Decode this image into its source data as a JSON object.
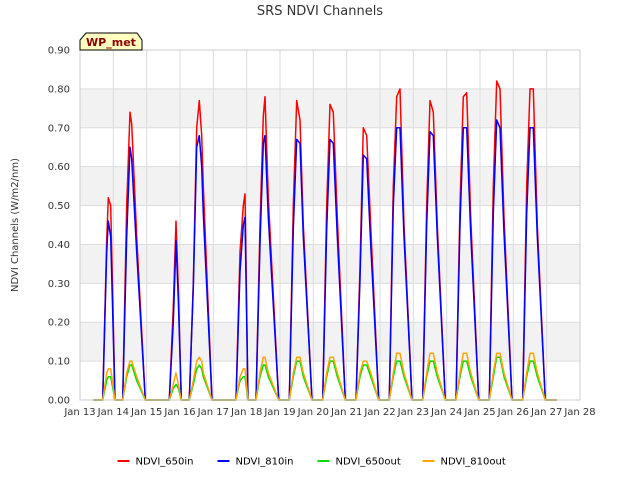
{
  "chart_data": {
    "type": "line",
    "title": "SRS NDVI Channels",
    "badge": "WP_met",
    "xlabel": "",
    "ylabel": "NDVI Channels (W/m2/nm)",
    "x_domain": [
      13,
      28
    ],
    "x_ticks": [
      13,
      14,
      15,
      16,
      17,
      18,
      19,
      20,
      21,
      22,
      23,
      24,
      25,
      26,
      27,
      28
    ],
    "x_tick_labels": [
      "Jan 13",
      "Jan 14",
      "Jan 15",
      "Jan 16",
      "Jan 17",
      "Jan 18",
      "Jan 19",
      "Jan 20",
      "Jan 21",
      "Jan 22",
      "Jan 23",
      "Jan 24",
      "Jan 25",
      "Jan 26",
      "Jan 27",
      "Jan 28"
    ],
    "ylim": [
      0,
      0.9
    ],
    "y_ticks": [
      0,
      0.1,
      0.2,
      0.3,
      0.4,
      0.5,
      0.6,
      0.7,
      0.8,
      0.9
    ],
    "y_tick_labels": [
      "0.00",
      "0.10",
      "0.20",
      "0.30",
      "0.40",
      "0.50",
      "0.60",
      "0.70",
      "0.80",
      "0.90"
    ],
    "grid": true,
    "alternating_bands": true,
    "legend_position": "bottom",
    "series": [
      {
        "name": "NDVI_650in",
        "color": "#ff0000",
        "x": [
          13.4,
          13.68,
          13.8,
          13.85,
          13.92,
          14.05,
          14.28,
          14.4,
          14.5,
          14.55,
          14.7,
          14.96,
          15.4,
          15.68,
          15.8,
          15.88,
          15.95,
          16.04,
          16.28,
          16.4,
          16.5,
          16.58,
          16.65,
          16.7,
          16.96,
          17.4,
          17.68,
          17.8,
          17.9,
          17.95,
          18.04,
          18.28,
          18.4,
          18.5,
          18.55,
          18.65,
          18.96,
          19.28,
          19.4,
          19.5,
          19.6,
          19.7,
          19.96,
          20.28,
          20.4,
          20.5,
          20.6,
          20.72,
          20.96,
          21.28,
          21.4,
          21.5,
          21.6,
          21.72,
          21.96,
          22.28,
          22.4,
          22.5,
          22.6,
          22.72,
          22.96,
          23.28,
          23.4,
          23.5,
          23.6,
          23.72,
          23.96,
          24.28,
          24.4,
          24.5,
          24.6,
          24.72,
          24.96,
          25.28,
          25.4,
          25.5,
          25.6,
          25.72,
          25.96,
          26.28,
          26.4,
          26.5,
          26.6,
          26.72,
          26.96,
          27.3
        ],
        "y": [
          0.0,
          0.0,
          0.41,
          0.52,
          0.5,
          0.0,
          0.0,
          0.5,
          0.74,
          0.71,
          0.42,
          0.0,
          0.0,
          0.0,
          0.24,
          0.46,
          0.29,
          0.0,
          0.0,
          0.3,
          0.7,
          0.77,
          0.68,
          0.55,
          0.0,
          0.0,
          0.0,
          0.38,
          0.5,
          0.53,
          0.0,
          0.0,
          0.45,
          0.73,
          0.78,
          0.52,
          0.0,
          0.0,
          0.5,
          0.77,
          0.72,
          0.45,
          0.0,
          0.0,
          0.5,
          0.76,
          0.74,
          0.47,
          0.0,
          0.0,
          0.34,
          0.7,
          0.68,
          0.45,
          0.0,
          0.0,
          0.55,
          0.78,
          0.8,
          0.45,
          0.0,
          0.0,
          0.5,
          0.77,
          0.74,
          0.45,
          0.0,
          0.0,
          0.5,
          0.78,
          0.79,
          0.47,
          0.0,
          0.0,
          0.55,
          0.82,
          0.8,
          0.47,
          0.0,
          0.0,
          0.55,
          0.8,
          0.8,
          0.45,
          0.0,
          0.0
        ]
      },
      {
        "name": "NDVI_810in",
        "color": "#0000ff",
        "x": [
          13.4,
          13.68,
          13.8,
          13.85,
          13.92,
          14.05,
          14.28,
          14.4,
          14.5,
          14.55,
          14.7,
          14.96,
          15.4,
          15.68,
          15.8,
          15.88,
          15.95,
          16.04,
          16.28,
          16.4,
          16.5,
          16.58,
          16.65,
          16.7,
          16.96,
          17.4,
          17.68,
          17.8,
          17.9,
          17.95,
          18.04,
          18.28,
          18.4,
          18.5,
          18.55,
          18.65,
          18.96,
          19.28,
          19.4,
          19.5,
          19.6,
          19.7,
          19.96,
          20.28,
          20.4,
          20.5,
          20.6,
          20.72,
          20.96,
          21.28,
          21.4,
          21.5,
          21.6,
          21.72,
          21.96,
          22.28,
          22.4,
          22.5,
          22.6,
          22.72,
          22.96,
          23.28,
          23.4,
          23.5,
          23.6,
          23.72,
          23.96,
          24.28,
          24.4,
          24.5,
          24.6,
          24.72,
          24.96,
          25.28,
          25.4,
          25.5,
          25.6,
          25.72,
          25.96,
          26.28,
          26.4,
          26.5,
          26.6,
          26.72,
          26.96,
          27.3
        ],
        "y": [
          0.0,
          0.0,
          0.38,
          0.46,
          0.42,
          0.0,
          0.0,
          0.42,
          0.65,
          0.62,
          0.38,
          0.0,
          0.0,
          0.0,
          0.2,
          0.41,
          0.26,
          0.0,
          0.0,
          0.29,
          0.65,
          0.68,
          0.6,
          0.48,
          0.0,
          0.0,
          0.0,
          0.33,
          0.45,
          0.47,
          0.0,
          0.0,
          0.4,
          0.66,
          0.68,
          0.47,
          0.0,
          0.0,
          0.44,
          0.67,
          0.66,
          0.42,
          0.0,
          0.0,
          0.44,
          0.67,
          0.66,
          0.42,
          0.0,
          0.0,
          0.31,
          0.63,
          0.62,
          0.4,
          0.0,
          0.0,
          0.5,
          0.7,
          0.7,
          0.42,
          0.0,
          0.0,
          0.45,
          0.69,
          0.68,
          0.42,
          0.0,
          0.0,
          0.45,
          0.7,
          0.7,
          0.43,
          0.0,
          0.0,
          0.48,
          0.72,
          0.7,
          0.43,
          0.0,
          0.0,
          0.48,
          0.7,
          0.7,
          0.42,
          0.0,
          0.0
        ]
      },
      {
        "name": "NDVI_650out",
        "color": "#00dd00",
        "x": [
          13.4,
          13.68,
          13.8,
          13.85,
          13.92,
          14.05,
          14.28,
          14.4,
          14.5,
          14.55,
          14.7,
          14.96,
          15.4,
          15.68,
          15.8,
          15.88,
          15.95,
          16.04,
          16.28,
          16.4,
          16.5,
          16.58,
          16.65,
          16.7,
          16.96,
          17.4,
          17.68,
          17.8,
          17.9,
          17.95,
          18.04,
          18.28,
          18.4,
          18.5,
          18.55,
          18.65,
          18.96,
          19.28,
          19.4,
          19.5,
          19.6,
          19.7,
          19.96,
          20.28,
          20.4,
          20.5,
          20.6,
          20.72,
          20.96,
          21.28,
          21.4,
          21.5,
          21.6,
          21.72,
          21.96,
          22.28,
          22.4,
          22.5,
          22.6,
          22.72,
          22.96,
          23.28,
          23.4,
          23.5,
          23.6,
          23.72,
          23.96,
          24.28,
          24.4,
          24.5,
          24.6,
          24.72,
          24.96,
          25.28,
          25.4,
          25.5,
          25.6,
          25.72,
          25.96,
          26.28,
          26.4,
          26.5,
          26.6,
          26.72,
          26.96,
          27.3
        ],
        "y": [
          0.0,
          0.0,
          0.05,
          0.06,
          0.06,
          0.0,
          0.0,
          0.06,
          0.09,
          0.09,
          0.05,
          0.0,
          0.0,
          0.0,
          0.03,
          0.04,
          0.03,
          0.0,
          0.0,
          0.04,
          0.08,
          0.09,
          0.08,
          0.06,
          0.0,
          0.0,
          0.0,
          0.05,
          0.06,
          0.06,
          0.0,
          0.0,
          0.06,
          0.09,
          0.09,
          0.06,
          0.0,
          0.0,
          0.06,
          0.1,
          0.1,
          0.06,
          0.0,
          0.0,
          0.06,
          0.1,
          0.1,
          0.06,
          0.0,
          0.0,
          0.06,
          0.09,
          0.09,
          0.06,
          0.0,
          0.0,
          0.06,
          0.1,
          0.1,
          0.06,
          0.0,
          0.0,
          0.06,
          0.1,
          0.1,
          0.06,
          0.0,
          0.0,
          0.06,
          0.1,
          0.1,
          0.06,
          0.0,
          0.0,
          0.06,
          0.11,
          0.11,
          0.06,
          0.0,
          0.0,
          0.06,
          0.1,
          0.1,
          0.06,
          0.0,
          0.0
        ]
      },
      {
        "name": "NDVI_810out",
        "color": "#ffa500",
        "x": [
          13.4,
          13.68,
          13.8,
          13.85,
          13.92,
          14.05,
          14.28,
          14.4,
          14.5,
          14.55,
          14.7,
          14.96,
          15.4,
          15.68,
          15.8,
          15.88,
          15.95,
          16.04,
          16.28,
          16.4,
          16.5,
          16.58,
          16.65,
          16.7,
          16.96,
          17.4,
          17.68,
          17.8,
          17.9,
          17.95,
          18.04,
          18.28,
          18.4,
          18.5,
          18.55,
          18.65,
          18.96,
          19.28,
          19.4,
          19.5,
          19.6,
          19.7,
          19.96,
          20.28,
          20.4,
          20.5,
          20.6,
          20.72,
          20.96,
          21.28,
          21.4,
          21.5,
          21.6,
          21.72,
          21.96,
          22.28,
          22.4,
          22.5,
          22.6,
          22.72,
          22.96,
          23.28,
          23.4,
          23.5,
          23.6,
          23.72,
          23.96,
          24.28,
          24.4,
          24.5,
          24.6,
          24.72,
          24.96,
          25.28,
          25.4,
          25.5,
          25.6,
          25.72,
          25.96,
          26.28,
          26.4,
          26.5,
          26.6,
          26.72,
          26.96,
          27.3
        ],
        "y": [
          0.0,
          0.0,
          0.07,
          0.08,
          0.08,
          0.0,
          0.0,
          0.07,
          0.1,
          0.1,
          0.06,
          0.0,
          0.0,
          0.0,
          0.04,
          0.07,
          0.04,
          0.0,
          0.0,
          0.05,
          0.1,
          0.11,
          0.1,
          0.07,
          0.0,
          0.0,
          0.0,
          0.06,
          0.08,
          0.08,
          0.0,
          0.0,
          0.07,
          0.11,
          0.11,
          0.07,
          0.0,
          0.0,
          0.07,
          0.11,
          0.11,
          0.07,
          0.0,
          0.0,
          0.07,
          0.11,
          0.11,
          0.07,
          0.0,
          0.0,
          0.07,
          0.1,
          0.1,
          0.07,
          0.0,
          0.0,
          0.07,
          0.12,
          0.12,
          0.07,
          0.0,
          0.0,
          0.07,
          0.12,
          0.12,
          0.07,
          0.0,
          0.0,
          0.07,
          0.12,
          0.12,
          0.07,
          0.0,
          0.0,
          0.07,
          0.12,
          0.12,
          0.07,
          0.0,
          0.0,
          0.07,
          0.12,
          0.12,
          0.07,
          0.0,
          0.0
        ]
      }
    ]
  }
}
